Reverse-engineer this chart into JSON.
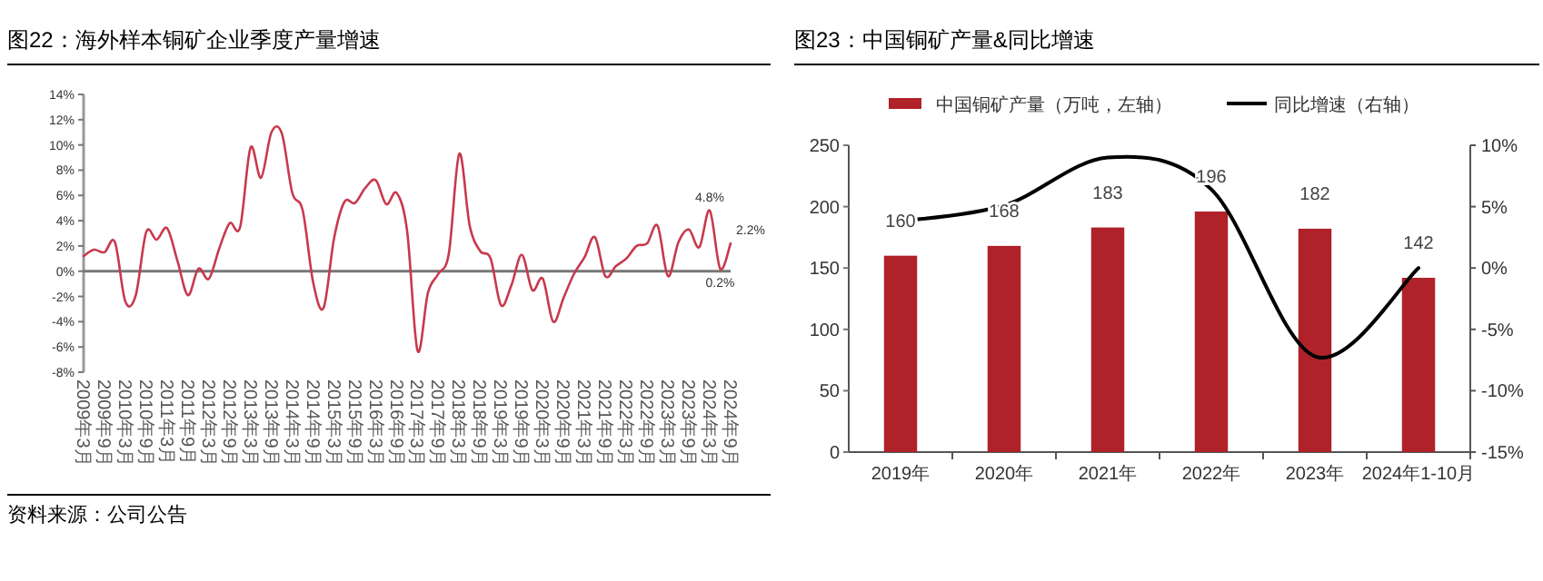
{
  "chart_data": [
    {
      "type": "line",
      "title": "图22：海外样本铜矿企业季度产量增速",
      "categories": [
        "2009年3月",
        null,
        "2009年9月",
        null,
        "2010年3月",
        null,
        "2010年9月",
        null,
        "2011年3月",
        null,
        "2011年9月",
        null,
        "2012年3月",
        null,
        "2012年9月",
        null,
        "2013年3月",
        null,
        "2013年9月",
        null,
        "2014年3月",
        null,
        "2014年9月",
        null,
        "2015年3月",
        null,
        "2015年9月",
        null,
        "2016年3月",
        null,
        "2016年9月",
        null,
        "2017年3月",
        null,
        "2017年9月",
        null,
        "2018年3月",
        null,
        "2018年9月",
        null,
        "2019年3月",
        null,
        "2019年9月",
        null,
        "2020年3月",
        null,
        "2020年9月",
        null,
        "2021年3月",
        null,
        "2021年9月",
        null,
        "2022年3月",
        null,
        "2022年9月",
        null,
        "2023年3月",
        null,
        "2023年9月",
        null,
        "2024年3月",
        null,
        "2024年9月"
      ],
      "series": [
        {
          "color": "#c8394d",
          "values": [
            1.2,
            1.7,
            1.5,
            2.3,
            -2.4,
            -1.9,
            3.1,
            2.5,
            3.4,
            0.8,
            -1.9,
            0.2,
            -0.6,
            1.8,
            3.8,
            3.5,
            9.8,
            7.4,
            11.0,
            10.9,
            6.2,
            4.8,
            -0.9,
            -2.9,
            2.6,
            5.5,
            5.4,
            6.6,
            7.2,
            5.3,
            6.2,
            3.2,
            -6.3,
            -1.7,
            -0.2,
            1.4,
            9.3,
            3.6,
            1.6,
            1.0,
            -2.7,
            -1.1,
            1.3,
            -1.5,
            -0.6,
            -4.0,
            -2.1,
            -0.2,
            1.1,
            2.7,
            -0.4,
            0.4,
            1.0,
            2.0,
            2.2,
            3.6,
            -0.4,
            2.3,
            3.3,
            1.9,
            4.8,
            0.2,
            2.2
          ]
        }
      ],
      "ylim": [
        -8,
        14
      ],
      "yticks": [
        {
          "value": -8,
          "label": "-8%"
        },
        {
          "value": -6,
          "label": "-6%"
        },
        {
          "value": -4,
          "label": "-4%"
        },
        {
          "value": -2,
          "label": "-2%"
        },
        {
          "value": 0,
          "label": "0%"
        },
        {
          "value": 2,
          "label": "2%"
        },
        {
          "value": 4,
          "label": "4%"
        },
        {
          "value": 6,
          "label": "6%"
        },
        {
          "value": 8,
          "label": "8%"
        },
        {
          "value": 10,
          "label": "10%"
        },
        {
          "value": 12,
          "label": "12%"
        },
        {
          "value": 14,
          "label": "14%"
        }
      ],
      "line_style": "solid",
      "annotations": [
        {
          "text": "4.8%",
          "x": "2024年3月",
          "y": 4.8
        },
        {
          "text": "0.2%",
          "y": 0.2
        },
        {
          "text": "2.2%",
          "x": "2024年9月",
          "y": 2.2
        },
        "资料来源：公司公告"
      ]
    },
    {
      "type": "bar",
      "title": "图23：中国铜矿产量&同比增速",
      "categories": [
        "2019年",
        "2020年",
        "2021年",
        "2022年",
        "2023年",
        "2024年1-10月"
      ],
      "series": [
        {
          "name": "中国铜矿产量（万吨，左轴）",
          "color": "#b0222a",
          "values": [
            160,
            168,
            183,
            196,
            182,
            142
          ],
          "value_labels": [
            "160",
            "168",
            "183",
            "196",
            "182",
            "142"
          ]
        },
        {
          "name": "同比增速（右轴）",
          "type": "line",
          "axis": "y2",
          "color": "#000000",
          "values": [
            3.8,
            5.1,
            9.0,
            6.4,
            -7.2,
            0.0
          ]
        }
      ],
      "ylim": [
        0,
        250
      ],
      "yticks": [
        0,
        50,
        100,
        150,
        200,
        250
      ],
      "y2lim": [
        -15,
        10
      ],
      "y2ticks": [
        {
          "value": -15,
          "label": "-15%"
        },
        {
          "value": -10,
          "label": "-10%"
        },
        {
          "value": -5,
          "label": "-5%"
        },
        {
          "value": 0,
          "label": "0%"
        },
        {
          "value": 5,
          "label": "5%"
        },
        {
          "value": 10,
          "label": "10%"
        }
      ],
      "legend": "top"
    }
  ]
}
